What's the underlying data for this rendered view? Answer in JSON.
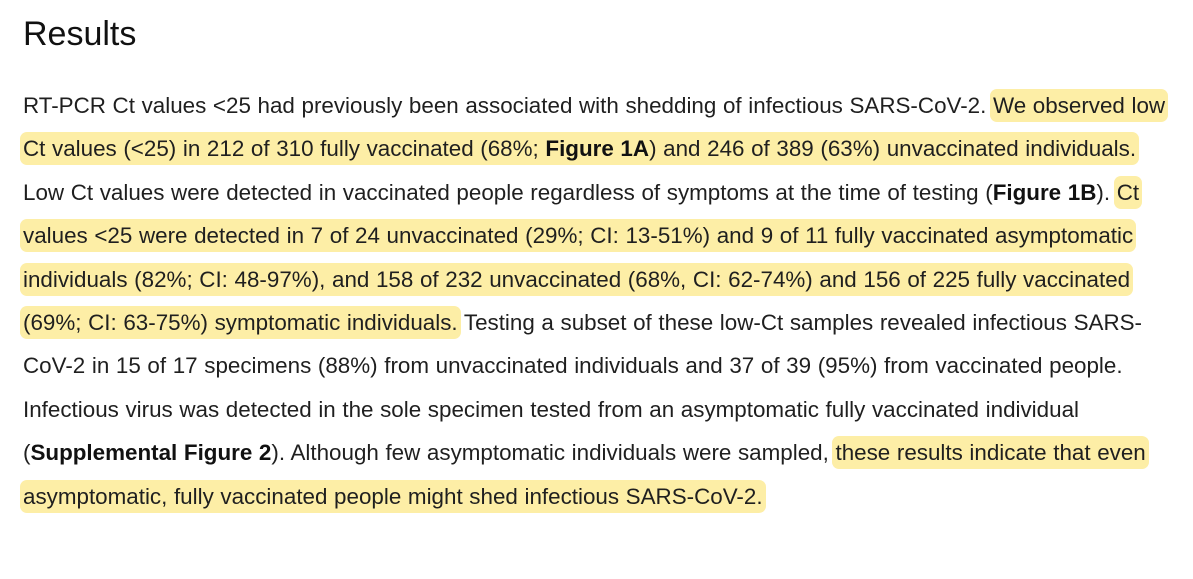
{
  "heading": "Results",
  "paragraph": {
    "t1": "RT-PCR Ct values <25 had previously been associated with shedding of infectious SARS-CoV-2. ",
    "h1a": "We observed low Ct values (<25) in 212 of 310 fully vaccinated (68%; ",
    "h1_bold": "Figure 1A",
    "h1b": ") and 246 of 389 (63%) unvaccinated individuals.",
    "t2": " Low Ct values were detected in vaccinated people regardless of symptoms at the time of testing (",
    "t2_bold": "Figure 1B",
    "t3": "). ",
    "h2": "Ct values <25 were detected in 7 of 24 unvaccinated (29%; CI: 13-51%) and 9 of 11 fully vaccinated asymptomatic individuals (82%; CI: 48-97%), and 158 of 232 unvaccinated (68%, CI: 62-74%) and 156 of 225 fully vaccinated (69%; CI: 63-75%) symptomatic individuals.",
    "t4": " Testing a subset of these low-Ct samples revealed infectious SARS-CoV-2 in 15 of 17 specimens (88%) from unvaccinated individuals and 37 of 39 (95%) from vaccinated people. Infectious virus was detected in the sole specimen tested from an asymptomatic fully vaccinated individual (",
    "t4_bold": "Supplemental Figure 2",
    "t5": "). Although few asymptomatic individuals were sampled, ",
    "h3": "these results indicate that even asymptomatic, fully vaccinated people might shed infectious SARS-CoV-2."
  },
  "colors": {
    "highlight": "#fdeea6",
    "text": "#1f1f1f",
    "background": "#ffffff"
  }
}
